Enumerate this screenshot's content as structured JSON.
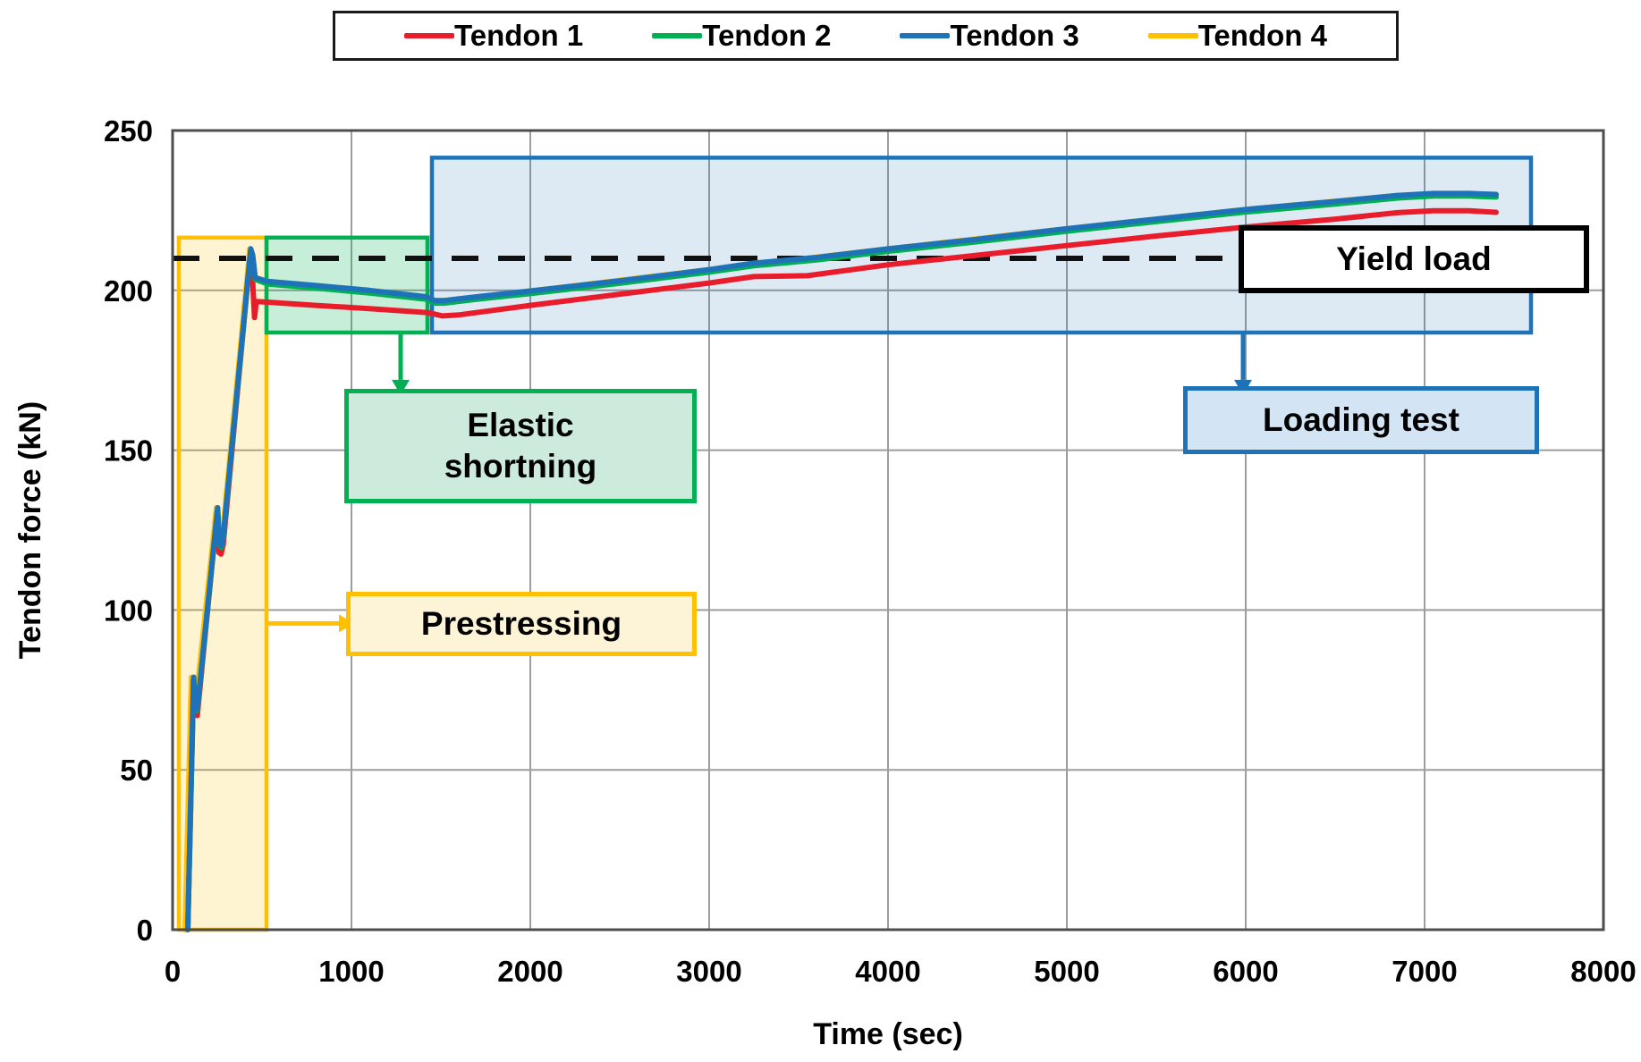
{
  "legend": {
    "items": [
      {
        "label": "Tendon 1",
        "color": "#e91c2c"
      },
      {
        "label": "Tendon 2",
        "color": "#00b052"
      },
      {
        "label": "Tendon 3",
        "color": "#1e73b8"
      },
      {
        "label": "Tendon 4",
        "color": "#ffc000"
      }
    ]
  },
  "axes": {
    "x_title": "Time (sec)",
    "y_title": "Tendon force (kN)"
  },
  "annotations": {
    "elastic": {
      "line1": "Elastic",
      "line2": "shortning"
    },
    "prestressing": {
      "label": "Prestressing"
    },
    "loading": {
      "label": "Loading test"
    },
    "yield": {
      "label": "Yield load"
    }
  },
  "chart_data": {
    "type": "line",
    "xlabel": "Time (sec)",
    "ylabel": "Tendon force (kN)",
    "xlim": [
      0,
      8000
    ],
    "ylim": [
      0,
      250
    ],
    "x_ticks": [
      0,
      1000,
      2000,
      3000,
      4000,
      5000,
      6000,
      7000,
      8000
    ],
    "y_ticks": [
      0,
      50,
      100,
      150,
      200,
      250
    ],
    "grid": true,
    "legend_position": "top",
    "yield_line": {
      "value": 210,
      "t": [
        0,
        5960
      ],
      "color": "#111111",
      "label": "Yield load"
    },
    "regions": [
      {
        "name": "Prestressing",
        "t": [
          35,
          525
        ],
        "f": [
          0,
          216.5
        ],
        "stroke": "#ffc000",
        "fill": "rgba(255,192,0,0.18)"
      },
      {
        "name": "Elastic shortning",
        "t": [
          525,
          1425
        ],
        "f": [
          186.8,
          216.5
        ],
        "stroke": "#00b052",
        "fill": "rgba(0,176,82,0.22)"
      },
      {
        "name": "Loading test",
        "t": [
          1450,
          7595
        ],
        "f": [
          186.8,
          241.5
        ],
        "stroke": "#1e73b8",
        "fill": "rgba(30,115,184,0.15)"
      }
    ],
    "arrows": [
      {
        "name": "elastic-arrow",
        "dir": "down",
        "t": 1275,
        "f_from": 186.5,
        "f_to": 172,
        "color": "#00b052"
      },
      {
        "name": "loading-arrow",
        "dir": "down",
        "t": 5985,
        "f_from": 186.5,
        "f_to": 172,
        "color": "#1e73b8"
      },
      {
        "name": "prestress-arrow",
        "dir": "right",
        "f": 95.8,
        "t_from": 525,
        "t_to": 930,
        "color": "#ffc000"
      }
    ],
    "series": [
      {
        "name": "Tendon 4",
        "color": "#ffc000",
        "width": 6,
        "points": [
          [
            70,
            0
          ],
          [
            105,
            79
          ],
          [
            112,
            70
          ],
          [
            126,
            69
          ],
          [
            245,
            132
          ],
          [
            253,
            121
          ],
          [
            266,
            120
          ],
          [
            278,
            123
          ],
          [
            432,
            213
          ],
          [
            443,
            211
          ],
          [
            458,
            204
          ],
          [
            530,
            202.8
          ],
          [
            1420,
            198
          ],
          [
            1465,
            196.8
          ],
          [
            1520,
            196.8
          ],
          [
            2000,
            199.8
          ],
          [
            3000,
            206.5
          ],
          [
            4000,
            213
          ],
          [
            5000,
            219.3
          ],
          [
            6000,
            225.3
          ],
          [
            6850,
            229.7
          ],
          [
            7400,
            230
          ]
        ]
      },
      {
        "name": "Tendon 1",
        "color": "#e91c2c",
        "width": 6,
        "points": [
          [
            85,
            0
          ],
          [
            116,
            78
          ],
          [
            123,
            67.5
          ],
          [
            138,
            67
          ],
          [
            250,
            131
          ],
          [
            259,
            118
          ],
          [
            271,
            117.5
          ],
          [
            283,
            120.5
          ],
          [
            433,
            210.5
          ],
          [
            444,
            207
          ],
          [
            452,
            198
          ],
          [
            458,
            191.5
          ],
          [
            468,
            196.5
          ],
          [
            530,
            196.3
          ],
          [
            800,
            195.3
          ],
          [
            1100,
            194.3
          ],
          [
            1430,
            193
          ],
          [
            1510,
            192
          ],
          [
            1600,
            192.3
          ],
          [
            2000,
            195.3
          ],
          [
            2500,
            198.8
          ],
          [
            3000,
            202.3
          ],
          [
            3250,
            204.3
          ],
          [
            3550,
            204.6
          ],
          [
            4000,
            208
          ],
          [
            4500,
            211
          ],
          [
            5000,
            214
          ],
          [
            5500,
            217
          ],
          [
            6000,
            219.8
          ],
          [
            6500,
            222.3
          ],
          [
            6850,
            224.3
          ],
          [
            7050,
            224.9
          ],
          [
            7250,
            224.9
          ],
          [
            7400,
            224.4
          ]
        ]
      },
      {
        "name": "Tendon 2",
        "color": "#00b052",
        "width": 6,
        "points": [
          [
            85,
            0
          ],
          [
            118,
            78.6
          ],
          [
            124,
            69.6
          ],
          [
            138,
            68.6
          ],
          [
            252,
            131.6
          ],
          [
            260,
            120.6
          ],
          [
            272,
            119.6
          ],
          [
            283,
            122.6
          ],
          [
            437,
            212.6
          ],
          [
            448,
            210.4
          ],
          [
            462,
            203.4
          ],
          [
            530,
            202
          ],
          [
            800,
            200.7
          ],
          [
            1100,
            199.2
          ],
          [
            1420,
            197.2
          ],
          [
            1465,
            196
          ],
          [
            1520,
            196
          ],
          [
            1700,
            197.2
          ],
          [
            2000,
            199
          ],
          [
            2500,
            202.2
          ],
          [
            3000,
            205.7
          ],
          [
            3250,
            207.7
          ],
          [
            3600,
            209.5
          ],
          [
            4000,
            212.2
          ],
          [
            4500,
            215.2
          ],
          [
            5000,
            218.5
          ],
          [
            5500,
            221.5
          ],
          [
            6000,
            224.5
          ],
          [
            6500,
            227
          ],
          [
            6850,
            228.9
          ],
          [
            7050,
            229.5
          ],
          [
            7250,
            229.5
          ],
          [
            7400,
            229.2
          ]
        ]
      },
      {
        "name": "Tendon 3",
        "color": "#1e73b8",
        "width": 6,
        "points": [
          [
            85,
            0
          ],
          [
            118,
            79
          ],
          [
            124,
            70
          ],
          [
            138,
            69
          ],
          [
            252,
            132
          ],
          [
            260,
            121
          ],
          [
            272,
            120
          ],
          [
            283,
            123
          ],
          [
            437,
            213
          ],
          [
            448,
            211
          ],
          [
            462,
            204
          ],
          [
            530,
            202.8
          ],
          [
            800,
            201.5
          ],
          [
            1100,
            200
          ],
          [
            1420,
            198
          ],
          [
            1465,
            196.8
          ],
          [
            1520,
            196.8
          ],
          [
            1700,
            198
          ],
          [
            2000,
            199.8
          ],
          [
            2500,
            203
          ],
          [
            3000,
            206.5
          ],
          [
            3250,
            208.5
          ],
          [
            3600,
            210.3
          ],
          [
            4000,
            213
          ],
          [
            4500,
            216
          ],
          [
            5000,
            219.3
          ],
          [
            5500,
            222.3
          ],
          [
            6000,
            225.3
          ],
          [
            6500,
            227.8
          ],
          [
            6850,
            229.7
          ],
          [
            7050,
            230.3
          ],
          [
            7250,
            230.3
          ],
          [
            7400,
            230
          ]
        ]
      }
    ]
  }
}
